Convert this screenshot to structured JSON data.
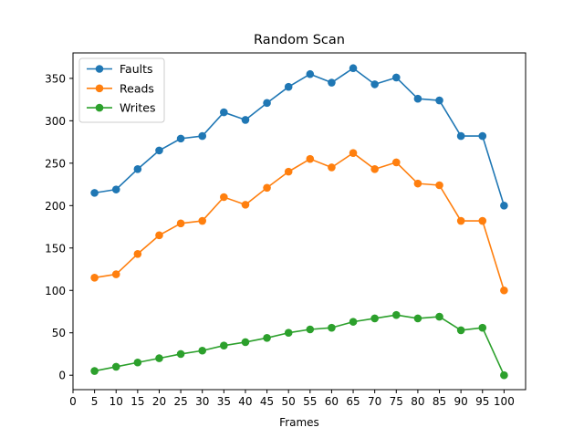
{
  "chart_data": {
    "type": "line",
    "title": "Random Scan",
    "xlabel": "Frames",
    "ylabel": "",
    "xlim": [
      0,
      105
    ],
    "ylim": [
      -17,
      380
    ],
    "xticks": [
      0,
      5,
      10,
      15,
      20,
      25,
      30,
      35,
      40,
      45,
      50,
      55,
      60,
      65,
      70,
      75,
      80,
      85,
      90,
      95,
      100
    ],
    "yticks": [
      0,
      50,
      100,
      150,
      200,
      250,
      300,
      350
    ],
    "grid": false,
    "legend_position": "top-left",
    "x": [
      5,
      10,
      15,
      20,
      25,
      30,
      35,
      40,
      45,
      50,
      55,
      60,
      65,
      70,
      75,
      80,
      85,
      90,
      95,
      100
    ],
    "series": [
      {
        "name": "Faults",
        "color": "#1f77b4",
        "values": [
          215,
          219,
          243,
          265,
          279,
          282,
          310,
          301,
          321,
          340,
          355,
          345,
          362,
          343,
          351,
          326,
          324,
          282,
          282,
          200
        ]
      },
      {
        "name": "Reads",
        "color": "#ff7f0e",
        "values": [
          115,
          119,
          143,
          165,
          179,
          182,
          210,
          201,
          221,
          240,
          255,
          245,
          262,
          243,
          251,
          226,
          224,
          182,
          182,
          100
        ]
      },
      {
        "name": "Writes",
        "color": "#2ca02c",
        "values": [
          5,
          10,
          15,
          20,
          25,
          29,
          35,
          39,
          44,
          50,
          54,
          56,
          63,
          67,
          71,
          67,
          69,
          53,
          56,
          0
        ]
      }
    ]
  }
}
